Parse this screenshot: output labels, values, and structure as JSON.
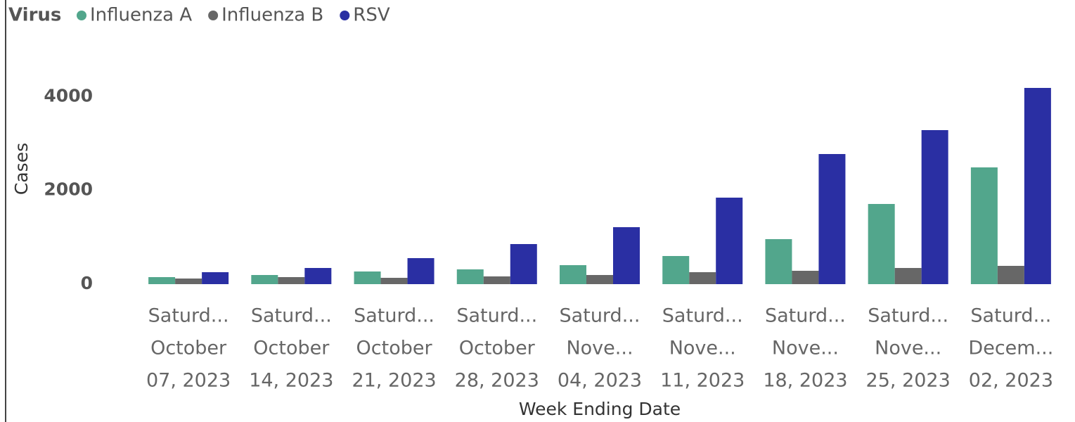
{
  "chart_data": {
    "type": "bar",
    "legend_title": "Virus",
    "legend_position": "top-left",
    "x_label": "Week Ending Date",
    "y_label": "Cases",
    "categories": [
      [
        "Saturd...",
        "October",
        "07, 2023"
      ],
      [
        "Saturd...",
        "October",
        "14, 2023"
      ],
      [
        "Saturd...",
        "October",
        "21, 2023"
      ],
      [
        "Saturd...",
        "October",
        "28, 2023"
      ],
      [
        "Saturd...",
        "Nove...",
        "04, 2023"
      ],
      [
        "Saturd...",
        "Nove...",
        "11, 2023"
      ],
      [
        "Saturd...",
        "Nove...",
        "18, 2023"
      ],
      [
        "Saturd...",
        "Nove...",
        "25, 2023"
      ],
      [
        "Saturd...",
        "Decem...",
        "02, 2023"
      ]
    ],
    "series": [
      {
        "name": "Influenza A",
        "color": "#52a68c",
        "values": [
          150,
          195,
          270,
          315,
          405,
          600,
          960,
          1710,
          2490
        ]
      },
      {
        "name": "Influenza B",
        "color": "#676767",
        "values": [
          120,
          150,
          135,
          165,
          195,
          255,
          285,
          345,
          390
        ]
      },
      {
        "name": "RSV",
        "color": "#2a2fa3",
        "values": [
          255,
          345,
          555,
          855,
          1215,
          1845,
          2775,
          3285,
          4185
        ]
      }
    ],
    "ylim": [
      0,
      4500
    ],
    "yticks": [
      0,
      2000,
      4000
    ],
    "grid": false
  }
}
